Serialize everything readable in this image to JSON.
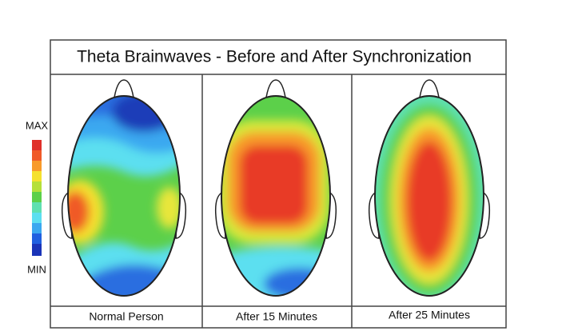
{
  "title": "Theta Brainwaves - Before and After Synchronization",
  "legend": {
    "max": "MAX",
    "min": "MIN"
  },
  "panels": [
    {
      "label": "Normal Person"
    },
    {
      "label": "After 15 Minutes"
    },
    {
      "label": "After 25 Minutes"
    }
  ]
}
